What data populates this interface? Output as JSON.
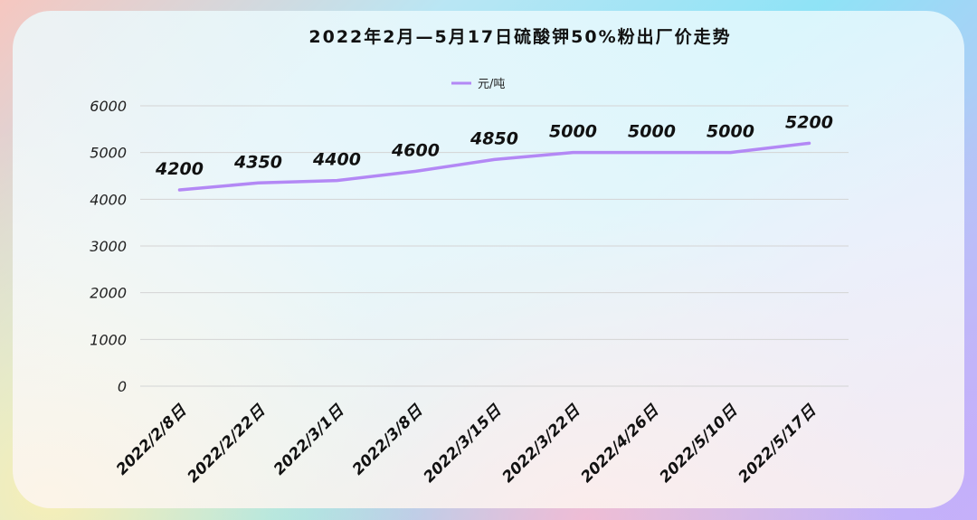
{
  "chart_data": {
    "type": "line",
    "title": "2022年2月—5月17日硫酸钾50%粉出厂价走势",
    "categories": [
      "2022/2/8日",
      "2022/2/22日",
      "2022/3/1日",
      "2022/3/8日",
      "2022/3/15日",
      "2022/3/22日",
      "2022/4/26日",
      "2022/5/10日",
      "2022/5/17日"
    ],
    "series": [
      {
        "name": "元/吨",
        "values": [
          4200,
          4350,
          4400,
          4600,
          4850,
          5000,
          5000,
          5000,
          5200
        ],
        "color": "#b388f5"
      }
    ],
    "y_ticks": [
      0,
      1000,
      2000,
      3000,
      4000,
      5000,
      6000
    ],
    "ylim": [
      0,
      6000
    ],
    "grid": true,
    "legend_position": "top-center"
  }
}
